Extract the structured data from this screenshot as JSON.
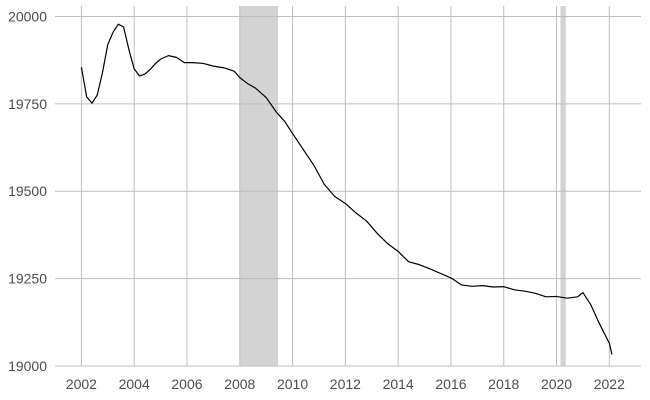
{
  "chart_data": {
    "type": "line",
    "title": "",
    "xlabel": "",
    "ylabel": "",
    "xlim": [
      2001.0,
      2023.2
    ],
    "ylim": [
      19000,
      20030
    ],
    "grid": true,
    "x_ticks": [
      2002,
      2004,
      2006,
      2008,
      2010,
      2012,
      2014,
      2016,
      2018,
      2020,
      2022
    ],
    "x_tick_labels": [
      "2002",
      "2004",
      "2006",
      "2008",
      "2010",
      "2012",
      "2014",
      "2016",
      "2018",
      "2020",
      "2022"
    ],
    "y_ticks": [
      19000,
      19250,
      19500,
      19750,
      20000
    ],
    "y_tick_labels": [
      "19000",
      "19250",
      "19500",
      "19750",
      "20000"
    ],
    "shaded_periods": [
      {
        "start": 2008.0,
        "end": 2009.45
      },
      {
        "start": 2020.15,
        "end": 2020.35
      }
    ],
    "colors": {
      "line": "#000000",
      "shade": "#d3d3d3",
      "grid": "#bebebe",
      "tick_text": "#4d4d4d"
    },
    "series": [
      {
        "x": [
          2002.0,
          2002.2,
          2002.4,
          2002.6,
          2002.8,
          2003.0,
          2003.2,
          2003.4,
          2003.6,
          2003.8,
          2004.0,
          2004.2,
          2004.4,
          2004.6,
          2004.8,
          2005.0,
          2005.3,
          2005.6,
          2005.9,
          2006.2,
          2006.6,
          2007.0,
          2007.4,
          2007.8,
          2008.0,
          2008.3,
          2008.6,
          2009.0,
          2009.4,
          2009.7,
          2010.0,
          2010.4,
          2010.8,
          2011.2,
          2011.6,
          2012.0,
          2012.4,
          2012.8,
          2013.2,
          2013.6,
          2014.0,
          2014.4,
          2014.8,
          2015.2,
          2015.6,
          2016.0,
          2016.4,
          2016.8,
          2017.2,
          2017.6,
          2018.0,
          2018.4,
          2018.8,
          2019.2,
          2019.6,
          2020.0,
          2020.4,
          2020.8,
          2021.0,
          2021.3,
          2021.6,
          2022.0,
          2022.1
        ],
        "y": [
          19855,
          19770,
          19752,
          19775,
          19840,
          19920,
          19955,
          19978,
          19970,
          19905,
          19850,
          19830,
          19835,
          19848,
          19865,
          19878,
          19888,
          19883,
          19868,
          19868,
          19866,
          19858,
          19853,
          19843,
          19825,
          19808,
          19795,
          19768,
          19725,
          19700,
          19665,
          19620,
          19575,
          19520,
          19485,
          19465,
          19438,
          19415,
          19380,
          19350,
          19328,
          19298,
          19290,
          19278,
          19265,
          19252,
          19232,
          19228,
          19230,
          19226,
          19227,
          19218,
          19214,
          19208,
          19198,
          19199,
          19194,
          19198,
          19210,
          19175,
          19125,
          19065,
          19033
        ]
      }
    ]
  }
}
